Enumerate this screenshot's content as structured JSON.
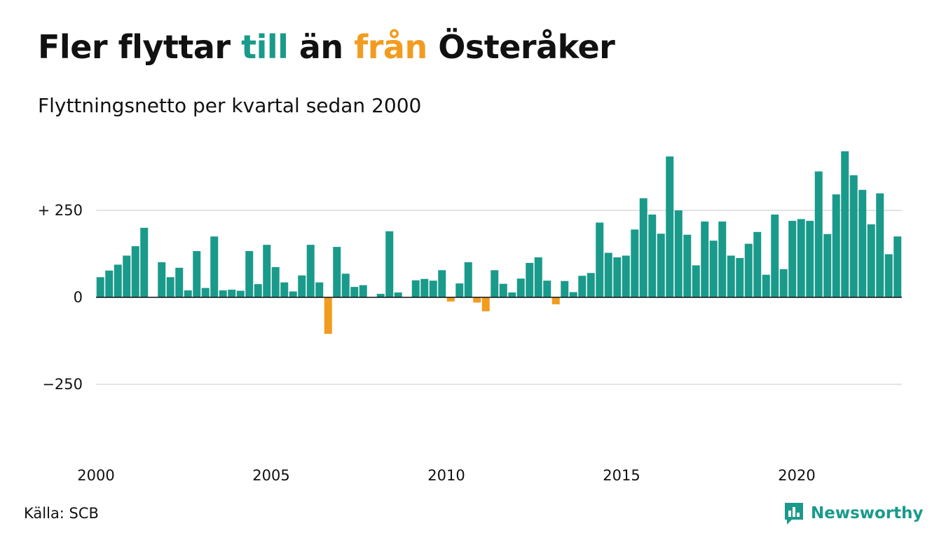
{
  "header": {
    "title_parts": [
      "Fler flyttar ",
      "till",
      " än ",
      "från",
      " Österåker"
    ],
    "subtitle": "Flyttningsnetto per kvartal sedan 2000"
  },
  "footer": {
    "source": "Källa: SCB",
    "brand": "Newsworthy"
  },
  "colors": {
    "positive": "#1a9a8b",
    "negative": "#f29c1f",
    "grid": "#e3e3e3",
    "zero_line": "#111111"
  },
  "chart_data": {
    "type": "bar",
    "title": "Fler flyttar till än från Österåker",
    "subtitle": "Flyttningsnetto per kvartal sedan 2000",
    "x_start_year": 2000,
    "periods_per_year": 4,
    "x_tick_labels": [
      "2000",
      "2005",
      "2010",
      "2015",
      "2020"
    ],
    "y_ticks": [
      {
        "value": 250,
        "label": "+ 250"
      },
      {
        "value": 0,
        "label": "0"
      },
      {
        "value": -250,
        "label": "−250"
      }
    ],
    "ylim": [
      -470,
      430
    ],
    "grid": true,
    "legend": "none",
    "values": [
      58,
      77,
      94,
      120,
      147,
      200,
      0,
      101,
      58,
      85,
      20,
      133,
      27,
      175,
      20,
      22,
      19,
      133,
      38,
      151,
      87,
      43,
      17,
      63,
      151,
      43,
      -105,
      145,
      68,
      30,
      35,
      0,
      10,
      190,
      14,
      0,
      49,
      53,
      48,
      78,
      -12,
      40,
      101,
      -15,
      -40,
      78,
      39,
      14,
      54,
      99,
      115,
      48,
      -20,
      47,
      15,
      62,
      70,
      215,
      128,
      115,
      120,
      195,
      285,
      238,
      183,
      405,
      250,
      180,
      92,
      218,
      163,
      218,
      120,
      113,
      154,
      188,
      65,
      238,
      81,
      220,
      225,
      220,
      362,
      182,
      296,
      420,
      351,
      309,
      210,
      299,
      124,
      175
    ]
  }
}
